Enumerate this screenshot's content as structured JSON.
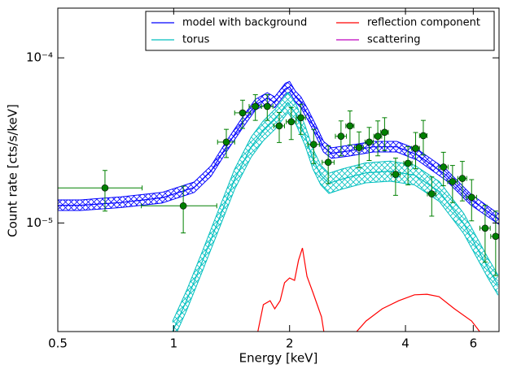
{
  "chart_data": {
    "type": "line",
    "xlabel": "Energy [keV]",
    "ylabel": "Count rate [cts/s/keV]",
    "xscale": "log",
    "yscale": "log",
    "xlim": [
      0.5,
      7
    ],
    "ylim": [
      2.2e-06,
      0.0002
    ],
    "xticks": [
      0.5,
      1,
      2,
      4,
      6
    ],
    "yticks": [
      {
        "value": 1e-05,
        "label": "10⁻⁵"
      },
      {
        "value": 0.0001,
        "label": "10⁻⁴"
      }
    ],
    "legend": "upper right",
    "series": [
      {
        "name": "model with background",
        "color": "#0000ff",
        "x": [
          0.5,
          0.573,
          0.73,
          0.932,
          1.13,
          1.25,
          1.37,
          1.51,
          1.63,
          1.75,
          1.83,
          1.95,
          2.0,
          2.07,
          2.14,
          2.23,
          2.34,
          2.45,
          2.57,
          2.85,
          3.3,
          3.8,
          4.3,
          5.1,
          5.9,
          7
        ],
        "values": [
          1.28e-05,
          1.28e-05,
          1.33e-05,
          1.42e-05,
          1.64e-05,
          2.06e-05,
          2.89e-05,
          4.05e-05,
          5.19e-05,
          5.69e-05,
          5.37e-05,
          6.5e-05,
          6.66e-05,
          5.82e-05,
          5.37e-05,
          4.53e-05,
          3.62e-05,
          2.89e-05,
          2.64e-05,
          2.73e-05,
          2.89e-05,
          2.89e-05,
          2.58e-05,
          1.95e-05,
          1.39e-05,
          1.05e-05
        ],
        "upper": [
          1.38e-05,
          1.38e-05,
          1.44e-05,
          1.53e-05,
          1.77e-05,
          2.22e-05,
          3.12e-05,
          4.37e-05,
          5.61e-05,
          6.15e-05,
          5.8e-05,
          7.02e-05,
          7.19e-05,
          6.29e-05,
          5.8e-05,
          4.89e-05,
          3.91e-05,
          3.12e-05,
          2.85e-05,
          2.95e-05,
          3.12e-05,
          3.12e-05,
          2.79e-05,
          2.11e-05,
          1.5e-05,
          1.13e-05
        ],
        "lower": [
          1.19e-05,
          1.19e-05,
          1.24e-05,
          1.32e-05,
          1.53e-05,
          1.92e-05,
          2.69e-05,
          3.77e-05,
          4.83e-05,
          5.29e-05,
          4.99e-05,
          6.05e-05,
          6.19e-05,
          5.41e-05,
          4.99e-05,
          4.21e-05,
          3.37e-05,
          2.69e-05,
          2.46e-05,
          2.54e-05,
          2.69e-05,
          2.69e-05,
          2.4e-05,
          1.81e-05,
          1.29e-05,
          9.8e-06
        ]
      },
      {
        "name": "torus",
        "color": "#00bfbf",
        "x": [
          0.993,
          1.08,
          1.19,
          1.31,
          1.44,
          1.59,
          1.71,
          1.84,
          1.98,
          2.08,
          2.19,
          2.3,
          2.41,
          2.53,
          2.73,
          3.15,
          3.65,
          4.22,
          4.9,
          5.67,
          6.56,
          6.96
        ],
        "values": [
          2.2e-06,
          3.39e-06,
          5.95e-06,
          1.05e-05,
          1.84e-05,
          2.89e-05,
          3.62e-05,
          4.29e-05,
          5.37e-05,
          4.53e-05,
          3.42e-05,
          2.44e-05,
          1.95e-05,
          1.74e-05,
          1.84e-05,
          2.01e-05,
          2.06e-05,
          1.95e-05,
          1.55e-05,
          9.9e-06,
          5.3e-06,
          4.2e-06
        ],
        "upper": [
          2.53e-06,
          3.9e-06,
          6.84e-06,
          1.21e-05,
          2.12e-05,
          3.32e-05,
          4.16e-05,
          4.93e-05,
          6.18e-05,
          5.21e-05,
          3.93e-05,
          2.81e-05,
          2.24e-05,
          2e-05,
          2.12e-05,
          2.31e-05,
          2.37e-05,
          2.24e-05,
          1.78e-05,
          1.14e-05,
          6.1e-06,
          4.83e-06
        ],
        "lower": [
          1.91e-06,
          2.95e-06,
          5.18e-06,
          9.14e-06,
          1.6e-05,
          2.51e-05,
          3.15e-05,
          3.73e-05,
          4.67e-05,
          3.94e-05,
          2.98e-05,
          2.12e-05,
          1.7e-05,
          1.51e-05,
          1.6e-05,
          1.75e-05,
          1.79e-05,
          1.7e-05,
          1.35e-05,
          8.61e-06,
          4.61e-06,
          3.65e-06
        ]
      },
      {
        "name": "reflection component",
        "color": "#ff0000",
        "x": [
          1.64,
          1.71,
          1.78,
          1.83,
          1.89,
          1.94,
          2.0,
          2.06,
          2.11,
          2.16,
          2.22,
          2.3,
          2.42,
          2.47,
          2.6,
          2.88,
          3.16,
          3.48,
          3.84,
          4.22,
          4.55,
          4.89,
          5.36,
          5.94,
          6.43
        ],
        "values": [
          2e-06,
          3.2e-06,
          3.38e-06,
          3.02e-06,
          3.38e-06,
          4.34e-06,
          4.64e-06,
          4.49e-06,
          5.95e-06,
          7.05e-06,
          4.75e-06,
          3.79e-06,
          2.7e-06,
          2e-06,
          null,
          2e-06,
          2.55e-06,
          3.02e-06,
          3.38e-06,
          3.67e-06,
          3.7e-06,
          3.58e-06,
          3.02e-06,
          2.55e-06,
          2e-06
        ]
      },
      {
        "name": "scattering",
        "color": "#bf00bf",
        "x": [],
        "values": []
      }
    ],
    "points": {
      "color": "#008000",
      "x": [
        0.663,
        1.059,
        1.37,
        1.51,
        1.63,
        1.75,
        1.88,
        2.02,
        2.14,
        2.31,
        2.52,
        2.72,
        2.87,
        3.03,
        3.22,
        3.39,
        3.53,
        3.77,
        4.06,
        4.25,
        4.45,
        4.68,
        5.02,
        5.3,
        5.62,
        5.94,
        6.44,
        6.86
      ],
      "values": [
        1.63e-05,
        1.27e-05,
        3.09e-05,
        4.64e-05,
        5.08e-05,
        5.08e-05,
        3.87e-05,
        4.1e-05,
        4.34e-05,
        2.99e-05,
        2.33e-05,
        3.35e-05,
        3.87e-05,
        2.86e-05,
        3.09e-05,
        3.35e-05,
        3.54e-05,
        1.97e-05,
        2.3e-05,
        2.83e-05,
        3.38e-05,
        1.5e-05,
        2.18e-05,
        1.78e-05,
        1.86e-05,
        1.43e-05,
        9.3e-06,
        8.3e-06
      ],
      "xerr": [
        0.165,
        0.235,
        0.07,
        0.07,
        0.06,
        0.06,
        0.06,
        0.06,
        0.06,
        0.08,
        0.09,
        0.09,
        0.07,
        0.08,
        0.08,
        0.08,
        0.08,
        0.1,
        0.1,
        0.1,
        0.1,
        0.12,
        0.14,
        0.15,
        0.15,
        0.18,
        0.2,
        0.2
      ],
      "yerr": [
        4.5e-06,
        4e-06,
        6e-06,
        9e-06,
        9e-06,
        9e-06,
        8e-06,
        9e-06,
        9e-06,
        7e-06,
        6e-06,
        8e-06,
        9e-06,
        7e-06,
        7e-06,
        8e-06,
        8e-06,
        5e-06,
        6e-06,
        7e-06,
        8e-06,
        4e-06,
        5e-06,
        4.5e-06,
        5e-06,
        4e-06,
        3.5e-06,
        3.5e-06
      ]
    }
  }
}
